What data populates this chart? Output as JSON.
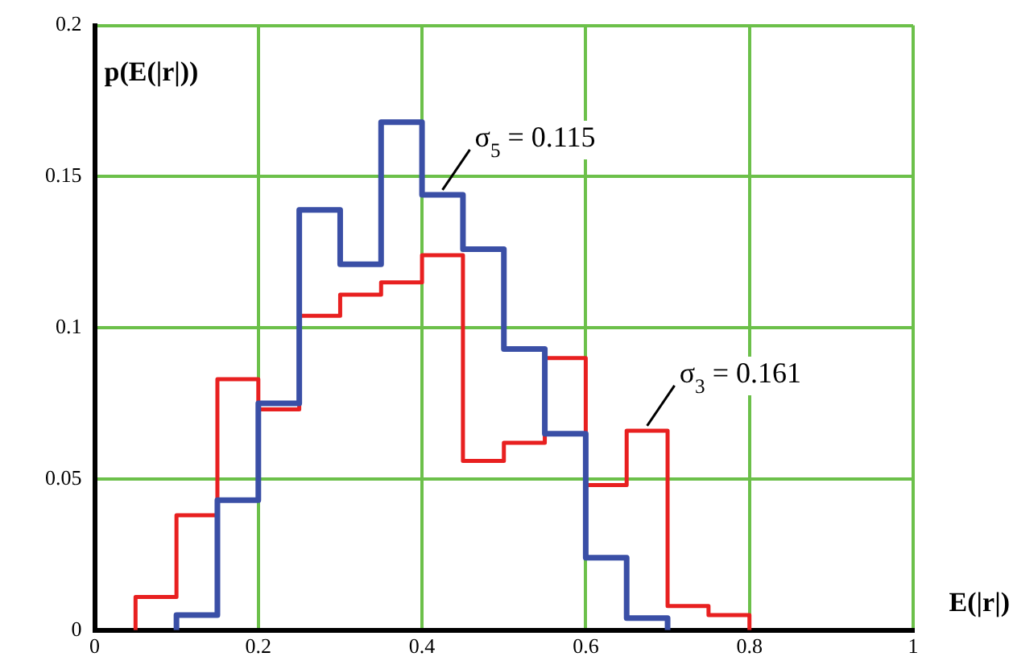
{
  "chart_data": {
    "type": "step",
    "xlabel": "E(|r|)",
    "ylabel": "p(E(|r|))",
    "series": [
      {
        "color": "#3a4fa6",
        "x": [
          0.1,
          0.1,
          0.15,
          0.2,
          0.25,
          0.3,
          0.35,
          0.4,
          0.45,
          0.5,
          0.55,
          0.6,
          0.65,
          0.7,
          0.7
        ],
        "values": [
          0,
          0.005,
          0.043,
          0.075,
          0.139,
          0.121,
          0.168,
          0.144,
          0.126,
          0.093,
          0.065,
          0.024,
          0.004,
          0.004,
          0
        ]
      },
      {
        "color": "#e82020",
        "x": [
          0.05,
          0.05,
          0.1,
          0.15,
          0.2,
          0.25,
          0.3,
          0.35,
          0.4,
          0.45,
          0.5,
          0.55,
          0.6,
          0.65,
          0.7,
          0.75,
          0.8,
          0.8
        ],
        "values": [
          0,
          0.011,
          0.038,
          0.083,
          0.073,
          0.104,
          0.111,
          0.115,
          0.124,
          0.056,
          0.062,
          0.09,
          0.048,
          0.066,
          0.008,
          0.005,
          0.005,
          0
        ]
      }
    ],
    "xlim": [
      0,
      1
    ],
    "xticks": [
      0,
      0.2,
      0.4,
      0.6,
      0.8,
      1
    ],
    "ylim": [
      0,
      0.2
    ],
    "yticks": [
      0,
      0.05,
      0.1,
      0.15,
      0.2
    ],
    "grid": true,
    "legend": false,
    "annotations": [
      {
        "text": "σ$_{5}$ = 0.115",
        "x": 0.425,
        "y": 0.144
      },
      {
        "text": "σ$_{3}$ = 0.161",
        "x": 0.675,
        "y": 0.066
      }
    ]
  }
}
